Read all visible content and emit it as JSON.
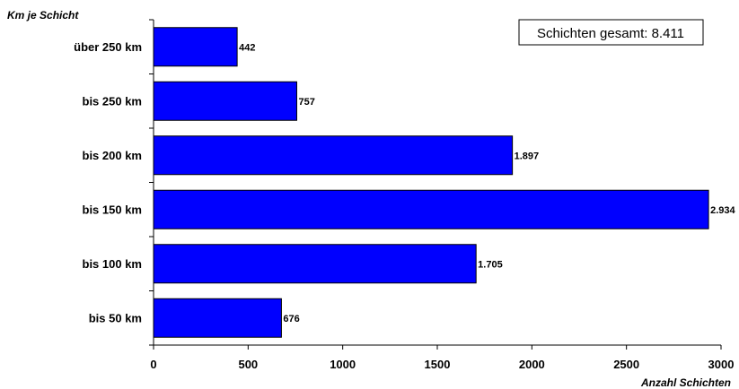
{
  "chart_data": {
    "type": "bar",
    "orientation": "horizontal",
    "ylabel": "Km je Schicht",
    "xlabel": "Anzahl Schichten",
    "annotation": "Schichten gesamt: 8.411",
    "categories": [
      "über 250 km",
      "bis 250 km",
      "bis 200 km",
      "bis 150 km",
      "bis 100 km",
      "bis 50 km"
    ],
    "values": [
      442,
      757,
      1897,
      2934,
      1705,
      676
    ],
    "value_labels": [
      "442",
      "757",
      "1.897",
      "2.934",
      "1.705",
      "676"
    ],
    "xlim": [
      0,
      3000
    ],
    "xticks": [
      0,
      500,
      1000,
      1500,
      2000,
      2500,
      3000
    ],
    "xtick_labels": [
      "0",
      "500",
      "1000",
      "1500",
      "2000",
      "2500",
      "3000"
    ],
    "grid": false,
    "bar_color": "#0000FF"
  }
}
